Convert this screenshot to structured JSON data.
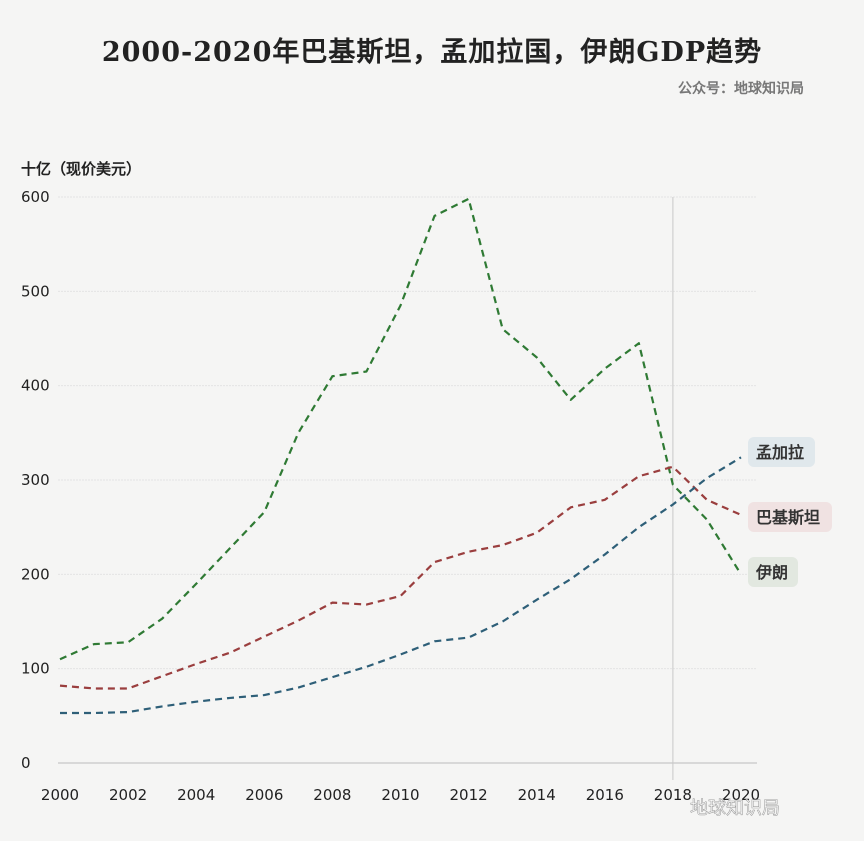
{
  "chart_data": {
    "type": "line",
    "title": "2000-2020年巴基斯坦，孟加拉国，伊朗GDP趋势",
    "subtitle": "公众号：地球知识局",
    "ylabel": "十亿（现价美元）",
    "xlabel": "",
    "ylim": [
      0,
      600
    ],
    "xlim": [
      2000,
      2020
    ],
    "grid": true,
    "yticks": [
      "0",
      "100",
      "200",
      "300",
      "400",
      "500",
      "600"
    ],
    "xticks": [
      "2000",
      "2002",
      "2004",
      "2006",
      "2008",
      "2010",
      "2012",
      "2014",
      "2016",
      "2018",
      "2020"
    ],
    "reference_line_x": 2018,
    "x": [
      2000,
      2001,
      2002,
      2003,
      2004,
      2005,
      2006,
      2007,
      2008,
      2009,
      2010,
      2011,
      2012,
      2013,
      2014,
      2015,
      2016,
      2017,
      2018,
      2019,
      2020
    ],
    "series": [
      {
        "name": "伊朗",
        "color": "#2f7a34",
        "badge_color": "#e2e8e0",
        "values": [
          110,
          126,
          128,
          153,
          190,
          228,
          266,
          350,
          410,
          415,
          485,
          580,
          598,
          460,
          430,
          385,
          418,
          445,
          295,
          258,
          200
        ]
      },
      {
        "name": "巴基斯坦",
        "color": "#9a3e3e",
        "badge_color": "#f0e2e2",
        "values": [
          82,
          79,
          79,
          92,
          105,
          117,
          134,
          151,
          170,
          168,
          177,
          213,
          224,
          231,
          244,
          271,
          279,
          304,
          314,
          279,
          263
        ]
      },
      {
        "name": "孟加拉",
        "color": "#2e5f78",
        "badge_color": "#e0e8ec",
        "values": [
          53,
          53,
          54,
          60,
          65,
          69,
          72,
          80,
          91,
          102,
          115,
          129,
          133,
          150,
          173,
          195,
          221,
          250,
          274,
          302,
          324
        ]
      }
    ],
    "legend": "right-end-labels"
  },
  "watermark": "地球知识局"
}
